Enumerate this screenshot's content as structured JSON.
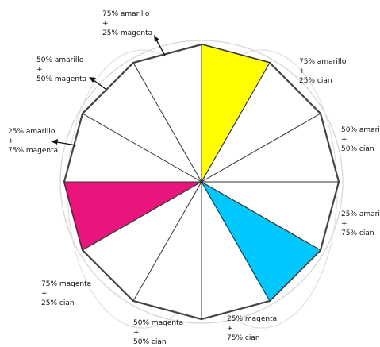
{
  "wheel": {
    "segment_count": 12,
    "primary_fills": [
      {
        "segment": "yellow",
        "color": "#ffff00"
      },
      {
        "segment": "cyan",
        "color": "#00c8ff"
      },
      {
        "segment": "magenta",
        "color": "#e8157d"
      }
    ],
    "outline_color": "#444444",
    "guide_circle_color": "#d6d6d6"
  },
  "labels": [
    {
      "id": "amarillo75-magenta25",
      "line1": "75% amarillo",
      "line2": "+",
      "line3": "25% magenta"
    },
    {
      "id": "amarillo75-cian25",
      "line1": "75% amarillo",
      "line2": "+",
      "line3": "25% cian"
    },
    {
      "id": "amarillo50-cian50",
      "line1": "50% amarillo",
      "line2": "+",
      "line3": "50% cian"
    },
    {
      "id": "amarillo25-cian75",
      "line1": "25% amarillo",
      "line2": "+",
      "line3": "75% cian"
    },
    {
      "id": "magenta25-cian75",
      "line1": "25% magenta",
      "line2": "+",
      "line3": "75% cian"
    },
    {
      "id": "magenta50-cian50",
      "line1": "50% magenta",
      "line2": "+",
      "line3": "50% cian"
    },
    {
      "id": "magenta75-cian25",
      "line1": "75% magenta",
      "line2": "+",
      "line3": "25% cian"
    },
    {
      "id": "amarillo25-magenta75",
      "line1": "25% amarillo",
      "line2": "+",
      "line3": "75% magenta"
    },
    {
      "id": "amarillo50-magenta50",
      "line1": "50% amarillo",
      "line2": "+",
      "line3": "50% magenta"
    }
  ]
}
